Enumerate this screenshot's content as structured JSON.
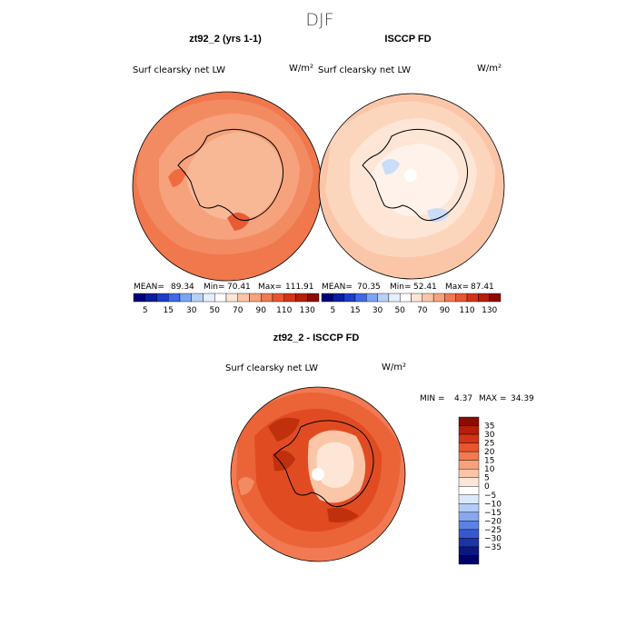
{
  "season": "DJF",
  "panels": [
    {
      "title": "zt92_2 (yrs 1-1)",
      "variable": "Surf clearsky net LW",
      "units": "W/m²",
      "mean_label": "MEAN=",
      "mean": "89.34",
      "min_label": "Min=",
      "min": "70.41",
      "max_label": "Max=",
      "max": "111.91"
    },
    {
      "title": "ISCCP FD",
      "variable": "Surf clearsky net LW",
      "units": "W/m²",
      "mean_label": "MEAN=",
      "mean": "70.35",
      "min_label": "Min=",
      "min": "52.41",
      "max_label": "Max=",
      "max": "87.41"
    },
    {
      "title": "zt92_2 - ISCCP FD",
      "variable": "Surf clearsky net LW",
      "units": "W/m²",
      "min_label": "MIN =",
      "min": "4.37",
      "max_label": "MAX =",
      "max": "34.39"
    }
  ],
  "field_colorbar": {
    "labels": [
      "5",
      "15",
      "30",
      "50",
      "70",
      "90",
      "110",
      "130"
    ],
    "colors": [
      "#00007a",
      "#0a1ea0",
      "#1c3ccc",
      "#3f6ae6",
      "#7ea4f0",
      "#b8d0f6",
      "#e6efff",
      "#ffffff",
      "#fde6d6",
      "#fbc6a8",
      "#f7a27c",
      "#f17a52",
      "#e8552e",
      "#d33416",
      "#b51e08",
      "#8c0c00"
    ]
  },
  "diff_colorbar": {
    "labels": [
      "35",
      "30",
      "25",
      "20",
      "15",
      "10",
      "5",
      "0",
      "−5",
      "−10",
      "−15",
      "−20",
      "−25",
      "−30",
      "−35"
    ],
    "colors": [
      "#8c0c00",
      "#b51e08",
      "#d33416",
      "#e8552e",
      "#f17a52",
      "#f7a27c",
      "#fbc6a8",
      "#fde6d6",
      "#ffffff",
      "#dbe8ff",
      "#b3ccf6",
      "#87a8ee",
      "#5a82e4",
      "#3658cc",
      "#1c34a8",
      "#0a1880",
      "#00006a"
    ]
  }
}
